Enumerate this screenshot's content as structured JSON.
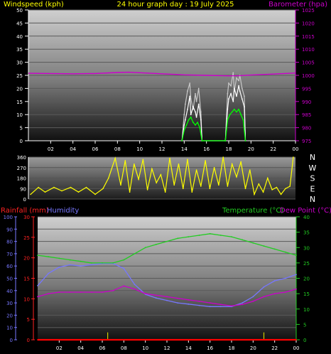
{
  "header": {
    "left_title": "Windspeed (kph)",
    "center_title": "24 hour graph day : 19 July 2025",
    "right_title": "Barometer (hpa)"
  },
  "legend_bottom": {
    "rainfall": "Rainfall (mm)",
    "humidity": "Humidity",
    "temperature": "Temperature (°C)",
    "dewpoint": "Dew Point (°C)"
  },
  "colors": {
    "title_text": "#ffff00",
    "barometer": "#cc00cc",
    "wind": "#ffffff",
    "gust": "#c8c8c8",
    "wind_avg": "#00ff00",
    "direction": "#ffff00",
    "temperature": "#22cc22",
    "dewpoint": "#cc00cc",
    "humidity": "#7777ff",
    "rain_axis": "#ff2222",
    "rain_line": "#ff0000",
    "rain_rate": "#cccc00"
  },
  "chart_data": [
    {
      "id": "wind_pressure",
      "type": "line",
      "title": "24 hour graph day : 19 July 2025",
      "x_ticks": [
        "02",
        "04",
        "06",
        "08",
        "10",
        "12",
        "14",
        "16",
        "18",
        "20",
        "22",
        "00"
      ],
      "y_left": {
        "label": "Windspeed (kph)",
        "range": [
          0,
          50
        ],
        "ticks": [
          0,
          5,
          10,
          15,
          20,
          25,
          30,
          35,
          40,
          45,
          50
        ]
      },
      "y_right": {
        "label": "Barometer (hpa)",
        "range": [
          975,
          1025
        ],
        "ticks": [
          975,
          980,
          985,
          990,
          995,
          1000,
          1005,
          1010,
          1015,
          1020,
          1025
        ]
      },
      "series": [
        {
          "name": "Barometer (hpa)",
          "axis": "right",
          "x": [
            0,
            2,
            4,
            6,
            8,
            9,
            10,
            12,
            14,
            16,
            18,
            19,
            20,
            22,
            24
          ],
          "y": [
            1000.8,
            1000.7,
            1000.6,
            1000.7,
            1001.1,
            1001.2,
            1001.0,
            1000.6,
            1000.2,
            1000.0,
            999.8,
            999.9,
            1000.1,
            1000.5,
            1000.9
          ]
        },
        {
          "name": "Windspeed (kph)",
          "axis": "left",
          "x": [
            13.8,
            14.0,
            14.1,
            14.3,
            14.5,
            14.6,
            14.8,
            15.0,
            15.1,
            15.3,
            15.5,
            15.6,
            17.7,
            17.9,
            18.0,
            18.2,
            18.4,
            18.5,
            18.7,
            18.9,
            19.0,
            19.2,
            19.4,
            19.5
          ],
          "y": [
            0,
            6,
            8,
            12,
            17,
            10,
            13,
            11,
            9,
            14,
            8,
            0,
            0,
            12,
            16,
            18,
            15,
            20,
            17,
            21,
            19,
            16,
            13,
            0
          ]
        },
        {
          "name": "Gust",
          "axis": "left",
          "x": [
            13.8,
            14.0,
            14.1,
            14.3,
            14.5,
            14.6,
            14.8,
            15.0,
            15.1,
            15.3,
            15.5,
            15.6,
            17.7,
            17.9,
            18.0,
            18.2,
            18.4,
            18.5,
            18.7,
            18.9,
            19.0,
            19.2,
            19.4,
            19.5
          ],
          "y": [
            0,
            10,
            14,
            19,
            22,
            16,
            12,
            18,
            15,
            20,
            11,
            0,
            0,
            18,
            22,
            21,
            26,
            19,
            24,
            23,
            25,
            20,
            17,
            0
          ]
        },
        {
          "name": "Average",
          "axis": "left",
          "x": [
            13.8,
            14.0,
            14.2,
            14.4,
            14.6,
            14.8,
            15.0,
            15.2,
            15.4,
            15.6,
            17.7,
            17.9,
            18.1,
            18.3,
            18.5,
            18.7,
            18.9,
            19.1,
            19.3,
            19.5
          ],
          "y": [
            0,
            4,
            6,
            8,
            9,
            7,
            6,
            7,
            5,
            0,
            0,
            8,
            10,
            11,
            12,
            11,
            12,
            10,
            8,
            0
          ]
        }
      ]
    },
    {
      "id": "wind_direction",
      "type": "line",
      "y_ticks": [
        0,
        90,
        180,
        270,
        360
      ],
      "compass": [
        "N",
        "W",
        "S",
        "E",
        "N"
      ],
      "y_range": [
        0,
        360
      ],
      "series": [
        {
          "name": "Direction",
          "x": [
            0.2,
            0.9,
            1.5,
            2.3,
            3.0,
            3.8,
            4.5,
            5.2,
            6.0,
            6.7,
            7.2,
            7.8,
            8.3,
            8.7,
            9.1,
            9.5,
            9.9,
            10.3,
            10.7,
            11.1,
            11.5,
            11.9,
            12.3,
            12.7,
            13.1,
            13.5,
            13.9,
            14.3,
            14.7,
            15.1,
            15.5,
            15.9,
            16.3,
            16.7,
            17.1,
            17.5,
            17.9,
            18.3,
            18.7,
            19.1,
            19.5,
            19.9,
            20.3,
            20.7,
            21.1,
            21.5,
            21.9,
            22.3,
            22.7,
            23.1,
            23.5,
            23.8
          ],
          "y": [
            40,
            100,
            60,
            100,
            70,
            100,
            60,
            100,
            40,
            90,
            180,
            350,
            120,
            330,
            60,
            300,
            170,
            340,
            80,
            260,
            140,
            210,
            60,
            350,
            120,
            300,
            90,
            340,
            60,
            250,
            110,
            330,
            90,
            270,
            120,
            360,
            110,
            300,
            190,
            320,
            90,
            250,
            40,
            130,
            60,
            180,
            80,
            100,
            40,
            90,
            110,
            360
          ]
        }
      ]
    },
    {
      "id": "temp_humidity_rain",
      "type": "line",
      "x_ticks": [
        "02",
        "04",
        "06",
        "08",
        "10",
        "12",
        "14",
        "16",
        "18",
        "20",
        "22",
        "00"
      ],
      "y_humidity": {
        "label": "Humidity",
        "range": [
          0,
          100
        ],
        "ticks": [
          0,
          10,
          20,
          30,
          40,
          50,
          60,
          70,
          80,
          90,
          100
        ]
      },
      "y_rain": {
        "label": "Rainfall (mm)",
        "range": [
          0,
          30
        ],
        "ticks": [
          0,
          5,
          10,
          15,
          20,
          25,
          30
        ]
      },
      "y_temp": {
        "label": "Temperature (°C)",
        "range": [
          0,
          40
        ],
        "ticks": [
          0,
          5,
          10,
          15,
          20,
          25,
          30,
          35,
          40
        ]
      },
      "series": [
        {
          "name": "Temperature (°C)",
          "axis": "temp",
          "x": [
            0,
            1,
            2,
            3,
            4,
            5,
            6,
            7,
            8,
            9,
            10,
            11,
            12,
            13,
            14,
            15,
            16,
            17,
            18,
            19,
            20,
            21,
            22,
            23,
            24
          ],
          "y": [
            27.5,
            27.0,
            26.5,
            26.0,
            25.5,
            25.0,
            25.0,
            25.0,
            26.0,
            28.0,
            30.0,
            31.0,
            32.0,
            33.0,
            33.5,
            34.0,
            34.5,
            34.0,
            33.5,
            32.5,
            31.5,
            30.5,
            29.5,
            28.5,
            27.5
          ]
        },
        {
          "name": "Dew Point (°C)",
          "axis": "temp",
          "x": [
            0,
            1,
            2,
            3,
            4,
            5,
            6,
            7,
            8,
            9,
            10,
            11,
            12,
            13,
            14,
            15,
            16,
            17,
            18,
            19,
            20,
            21,
            22,
            23,
            24
          ],
          "y": [
            14.0,
            15.0,
            15.5,
            15.5,
            15.5,
            15.5,
            15.5,
            16.0,
            17.5,
            16.5,
            15.0,
            14.5,
            14.0,
            13.5,
            13.0,
            12.5,
            12.0,
            11.5,
            11.0,
            11.5,
            12.5,
            14.0,
            15.0,
            15.5,
            16.5
          ]
        },
        {
          "name": "Humidity",
          "axis": "humidity",
          "x": [
            0,
            1,
            2,
            3,
            4,
            5,
            6,
            7,
            8,
            9,
            10,
            11,
            12,
            13,
            14,
            15,
            16,
            17,
            18,
            19,
            20,
            21,
            22,
            23,
            24
          ],
          "y": [
            44,
            54,
            59,
            61,
            60,
            61,
            62,
            62,
            58,
            45,
            37,
            34,
            32,
            30,
            29,
            28,
            27,
            27,
            27,
            30,
            35,
            43,
            48,
            50,
            53
          ]
        },
        {
          "name": "Rainfall (mm)",
          "axis": "rain",
          "x": [
            0,
            24
          ],
          "y": [
            0,
            0
          ]
        },
        {
          "name": "Rain Rate",
          "axis": "rain",
          "x": [
            6.5,
            21.0
          ],
          "y": [
            1.8,
            1.8
          ]
        }
      ]
    }
  ]
}
